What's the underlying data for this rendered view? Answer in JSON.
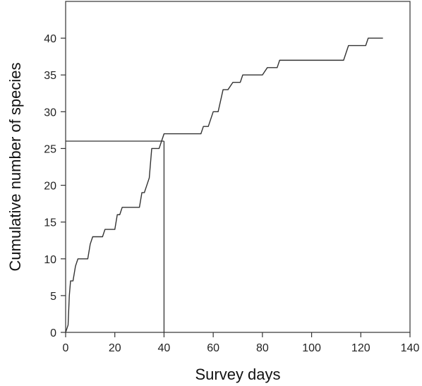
{
  "chart_data": {
    "type": "line",
    "title": "",
    "xlabel": "Survey days",
    "ylabel": "Cumulative number of species",
    "xlim": [
      0,
      140
    ],
    "ylim": [
      0,
      45
    ],
    "xticks": [
      0,
      20,
      40,
      60,
      80,
      100,
      120,
      140
    ],
    "yticks": [
      0,
      5,
      10,
      15,
      20,
      25,
      30,
      35,
      40
    ],
    "grid": false,
    "legend": "none",
    "line_color": "#333333",
    "series": [
      {
        "x": [
          0,
          1,
          1.5,
          2,
          3,
          4,
          5,
          6,
          9,
          10,
          11,
          15,
          16,
          20,
          21,
          22,
          23,
          24,
          30,
          31,
          32,
          33,
          34,
          35,
          38,
          39,
          40,
          55,
          56,
          58,
          60,
          62,
          64,
          66,
          68,
          71,
          72,
          80,
          82,
          86,
          87,
          113,
          115,
          122,
          123,
          129
        ],
        "y": [
          0,
          1,
          5,
          7,
          7,
          9,
          10,
          10,
          10,
          12,
          13,
          13,
          14,
          14,
          16,
          16,
          17,
          17,
          17,
          19,
          19,
          20,
          21,
          25,
          25,
          26,
          27,
          27,
          28,
          28,
          30,
          30,
          33,
          33,
          34,
          34,
          35,
          35,
          36,
          36,
          37,
          37,
          39,
          39,
          40,
          40
        ]
      }
    ],
    "reference_lines": [
      {
        "x": [
          0,
          40
        ],
        "y": [
          26,
          26
        ]
      },
      {
        "x": [
          40,
          40
        ],
        "y": [
          0,
          26
        ]
      }
    ]
  }
}
